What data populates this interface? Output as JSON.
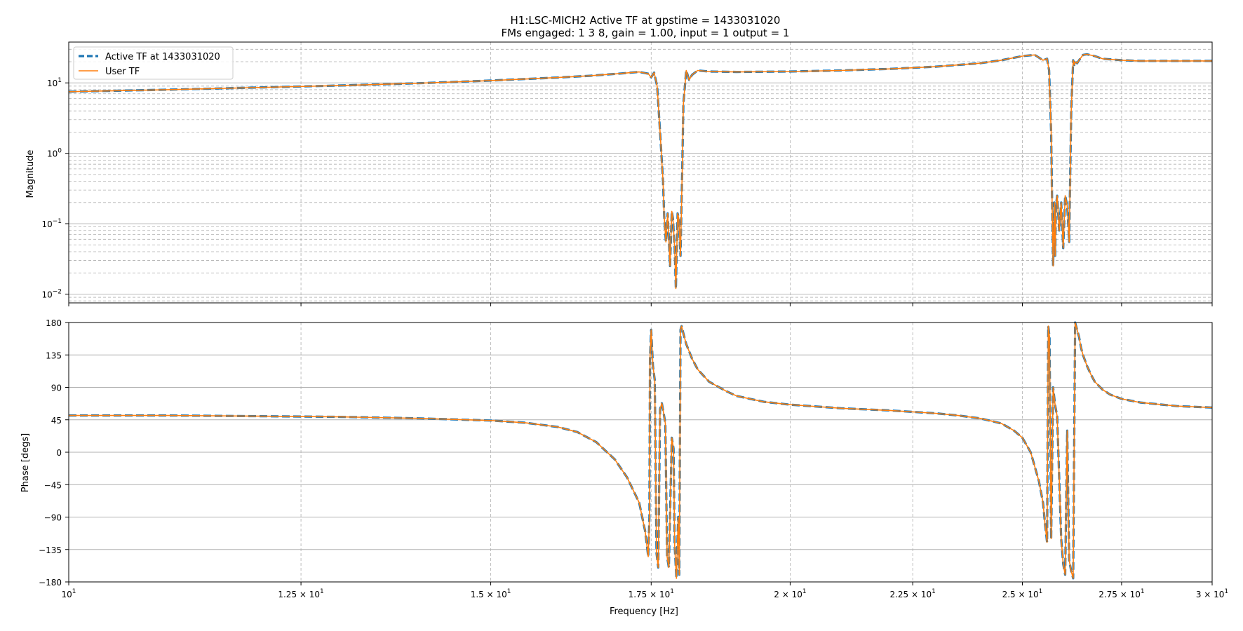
{
  "figure": {
    "title_line1": "H1:LSC-MICH2 Active TF at gpstime = 1433031020",
    "title_line2": "FMs engaged: 1 3 8, gain = 1.00, input = 1 output = 1"
  },
  "chart_data": [
    {
      "type": "line",
      "panel": "magnitude",
      "title": "",
      "xlabel": "",
      "ylabel": "Magnitude",
      "xscale": "log",
      "yscale": "log",
      "xlim": [
        10,
        30
      ],
      "ylim": [
        0.0075,
        38
      ],
      "grid": true,
      "legend_placement": "top-left",
      "xtick_labels": [],
      "ytick_values": [
        0.01,
        0.1,
        1,
        10
      ],
      "ytick_labels": [
        {
          "base": "10",
          "exp": "−2"
        },
        {
          "base": "10",
          "exp": "−1"
        },
        {
          "base": "10",
          "exp": "0"
        },
        {
          "base": "10",
          "exp": "1"
        }
      ],
      "x": [
        10.0,
        11.0,
        12.0,
        13.0,
        14.0,
        15.0,
        16.0,
        16.5,
        17.0,
        17.3,
        17.45,
        17.5,
        17.55,
        17.6,
        17.65,
        17.7,
        17.72,
        17.75,
        17.78,
        17.8,
        17.82,
        17.85,
        17.87,
        17.9,
        17.92,
        17.95,
        17.97,
        18.0,
        18.03,
        18.05,
        18.1,
        18.15,
        18.2,
        18.3,
        18.5,
        19.0,
        20.0,
        21.0,
        22.0,
        23.0,
        24.0,
        24.5,
        25.0,
        25.3,
        25.5,
        25.6,
        25.65,
        25.7,
        25.72,
        25.75,
        25.78,
        25.8,
        25.82,
        25.85,
        25.9,
        25.95,
        26.0,
        26.05,
        26.1,
        26.15,
        26.2,
        26.25,
        26.28,
        26.3,
        26.35,
        26.4,
        26.5,
        26.6,
        26.8,
        27.0,
        27.5,
        28.0,
        29.0,
        30.0
      ],
      "series": [
        {
          "name": "Active TF at 1433031020",
          "color": "#1f77b4",
          "style": "dashed",
          "values": [
            7.5,
            8.0,
            8.6,
            9.2,
            9.9,
            10.8,
            11.9,
            12.6,
            13.6,
            14.3,
            13.5,
            12.0,
            14.0,
            9.0,
            2.0,
            0.4,
            0.13,
            0.055,
            0.14,
            0.06,
            0.025,
            0.15,
            0.12,
            0.045,
            0.012,
            0.14,
            0.12,
            0.035,
            0.6,
            5.0,
            15.0,
            11.0,
            13.0,
            15.0,
            14.5,
            14.3,
            14.5,
            15.0,
            15.8,
            17.0,
            19.0,
            21.0,
            24.0,
            25.0,
            21.0,
            22.0,
            15.0,
            2.0,
            0.3,
            0.025,
            0.2,
            0.035,
            0.18,
            0.25,
            0.08,
            0.2,
            0.045,
            0.25,
            0.18,
            0.055,
            4.0,
            21.0,
            18.0,
            20.0,
            19.0,
            21.0,
            25.0,
            25.5,
            24.0,
            22.0,
            21.0,
            20.5,
            20.5,
            20.5
          ]
        },
        {
          "name": "User TF",
          "color": "#ff7f0e",
          "style": "solid",
          "values": [
            7.5,
            8.0,
            8.6,
            9.2,
            9.9,
            10.8,
            11.9,
            12.6,
            13.6,
            14.3,
            13.5,
            12.0,
            14.0,
            9.0,
            2.0,
            0.4,
            0.13,
            0.055,
            0.14,
            0.06,
            0.025,
            0.15,
            0.12,
            0.045,
            0.012,
            0.14,
            0.12,
            0.035,
            0.6,
            5.0,
            15.0,
            11.0,
            13.0,
            15.0,
            14.5,
            14.3,
            14.5,
            15.0,
            15.8,
            17.0,
            19.0,
            21.0,
            24.0,
            25.0,
            21.0,
            22.0,
            15.0,
            2.0,
            0.3,
            0.025,
            0.2,
            0.035,
            0.18,
            0.25,
            0.08,
            0.2,
            0.045,
            0.25,
            0.18,
            0.055,
            4.0,
            21.0,
            18.0,
            20.0,
            19.0,
            21.0,
            25.0,
            25.5,
            24.0,
            22.0,
            21.0,
            20.5,
            20.5,
            20.5
          ]
        }
      ]
    },
    {
      "type": "line",
      "panel": "phase",
      "title": "",
      "xlabel": "Frequency [Hz]",
      "ylabel": "Phase [degs]",
      "xscale": "log",
      "yscale": "linear",
      "xlim": [
        10,
        30
      ],
      "ylim": [
        -180,
        180
      ],
      "grid": true,
      "xtick_values": [
        10,
        12.5,
        15,
        17.5,
        20,
        22.5,
        25,
        27.5,
        30
      ],
      "xtick_labels": [
        {
          "base": "10",
          "exp": "1"
        },
        {
          "base": "1.25 × 10",
          "exp": "1"
        },
        {
          "base": "1.5 × 10",
          "exp": "1"
        },
        {
          "base": "1.75 × 10",
          "exp": "1"
        },
        {
          "base": "2 × 10",
          "exp": "1"
        },
        {
          "base": "2.25 × 10",
          "exp": "1"
        },
        {
          "base": "2.5 × 10",
          "exp": "1"
        },
        {
          "base": "2.75 × 10",
          "exp": "1"
        },
        {
          "base": "3 × 10",
          "exp": "1"
        }
      ],
      "ytick_values": [
        180,
        135,
        90,
        45,
        0,
        -45,
        -90,
        -135,
        -180
      ],
      "ytick_labels": [
        "180",
        "135",
        "90",
        "45",
        "0",
        "−45",
        "−90",
        "−135",
        "−180"
      ],
      "x": [
        10.0,
        11.0,
        12.0,
        13.0,
        14.0,
        15.0,
        15.5,
        16.0,
        16.3,
        16.6,
        16.9,
        17.1,
        17.3,
        17.4,
        17.45,
        17.47,
        17.48,
        17.5,
        17.53,
        17.56,
        17.59,
        17.62,
        17.65,
        17.68,
        17.72,
        17.74,
        17.77,
        17.8,
        17.85,
        17.88,
        17.9,
        17.93,
        17.96,
        17.98,
        18.0,
        18.02,
        18.05,
        18.1,
        18.2,
        18.3,
        18.5,
        18.8,
        19.0,
        19.5,
        20.0,
        21.0,
        22.0,
        23.0,
        23.5,
        24.0,
        24.5,
        24.8,
        25.0,
        25.2,
        25.4,
        25.5,
        25.55,
        25.6,
        25.63,
        25.66,
        25.7,
        25.75,
        25.8,
        25.85,
        25.95,
        26.0,
        26.05,
        26.1,
        26.15,
        26.2,
        26.25,
        26.3,
        26.35,
        26.4,
        26.45,
        26.5,
        26.6,
        26.7,
        26.8,
        27.0,
        27.2,
        27.5,
        28.0,
        29.0,
        30.0
      ],
      "series": [
        {
          "name": "Active TF at 1433031020",
          "color": "#1f77b4",
          "style": "dashed",
          "values": [
            51,
            51,
            50,
            49,
            47,
            44,
            41,
            35,
            28,
            14,
            -10,
            -35,
            -70,
            -110,
            -145,
            -90,
            130,
            170,
            120,
            100,
            -140,
            -160,
            60,
            68,
            50,
            40,
            -145,
            -160,
            20,
            5,
            -130,
            -175,
            -90,
            -170,
            170,
            175,
            165,
            150,
            130,
            115,
            98,
            85,
            78,
            70,
            66,
            61,
            58,
            54,
            51,
            47,
            40,
            30,
            20,
            0,
            -40,
            -70,
            -100,
            -125,
            175,
            160,
            -120,
            90,
            65,
            50,
            -120,
            -155,
            -170,
            30,
            -150,
            -165,
            -175,
            180,
            170,
            160,
            145,
            135,
            120,
            108,
            98,
            87,
            80,
            74,
            69,
            64,
            62
          ]
        },
        {
          "name": "User TF",
          "color": "#ff7f0e",
          "style": "solid",
          "values": [
            51,
            51,
            50,
            49,
            47,
            44,
            41,
            35,
            28,
            14,
            -10,
            -35,
            -70,
            -110,
            -145,
            -90,
            130,
            170,
            120,
            100,
            -140,
            -160,
            60,
            68,
            50,
            40,
            -145,
            -160,
            20,
            5,
            -130,
            -175,
            -90,
            -170,
            170,
            175,
            165,
            150,
            130,
            115,
            98,
            85,
            78,
            70,
            66,
            61,
            58,
            54,
            51,
            47,
            40,
            30,
            20,
            0,
            -40,
            -70,
            -100,
            -125,
            175,
            160,
            -120,
            90,
            65,
            50,
            -120,
            -155,
            -170,
            30,
            -150,
            -165,
            -175,
            180,
            170,
            160,
            145,
            135,
            120,
            108,
            98,
            87,
            80,
            74,
            69,
            64,
            62
          ]
        }
      ]
    }
  ]
}
